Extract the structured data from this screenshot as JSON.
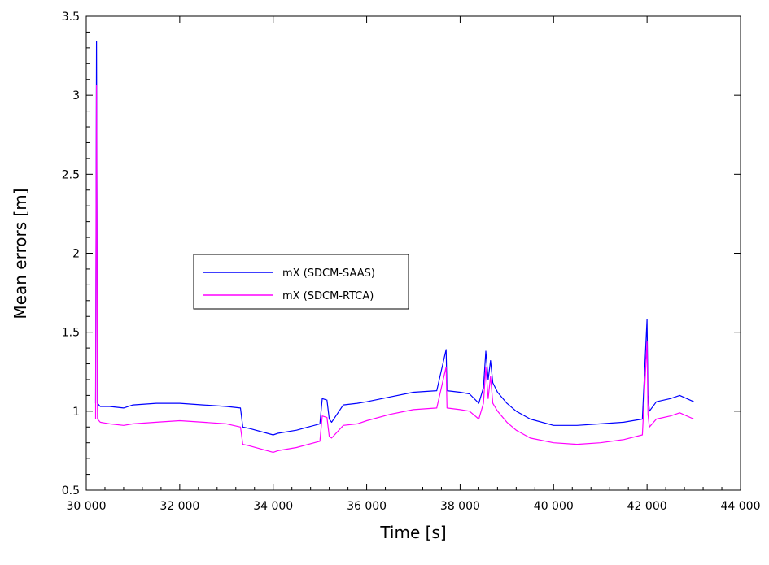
{
  "chart_data": {
    "type": "line",
    "xlabel": "Time [s]",
    "ylabel": "Mean errors [m]",
    "xlim": [
      30000,
      44000
    ],
    "ylim": [
      0.5,
      3.5
    ],
    "xticks": [
      30000,
      32000,
      34000,
      36000,
      38000,
      40000,
      42000,
      44000
    ],
    "xtick_labels": [
      "30 000",
      "32 000",
      "34 000",
      "36 000",
      "38 000",
      "40 000",
      "42 000",
      "44 000"
    ],
    "yticks": [
      0.5,
      1,
      1.5,
      2,
      2.5,
      3,
      3.5
    ],
    "ytick_labels": [
      "0.5",
      "1",
      "1.5",
      "2",
      "2.5",
      "3",
      "3.5"
    ],
    "grid": false,
    "legend_position": "center-left",
    "series": [
      {
        "name": "mX (SDCM-SAAS)",
        "color": "#0000ff",
        "x": [
          30200,
          30220,
          30240,
          30300,
          30500,
          30800,
          31000,
          31500,
          32000,
          32500,
          33000,
          33300,
          33350,
          33500,
          34000,
          34100,
          34500,
          35000,
          35050,
          35150,
          35200,
          35250,
          35500,
          35800,
          36000,
          36500,
          37000,
          37500,
          37700,
          37720,
          38000,
          38200,
          38400,
          38500,
          38550,
          38600,
          38650,
          38700,
          38800,
          39000,
          39200,
          39500,
          40000,
          40500,
          41000,
          41500,
          41900,
          42000,
          42020,
          42050,
          42200,
          42500,
          42700,
          43000
        ],
        "y": [
          1.05,
          3.34,
          1.05,
          1.03,
          1.03,
          1.02,
          1.04,
          1.05,
          1.05,
          1.04,
          1.03,
          1.02,
          0.9,
          0.89,
          0.85,
          0.86,
          0.88,
          0.92,
          1.08,
          1.07,
          0.95,
          0.93,
          1.04,
          1.05,
          1.06,
          1.09,
          1.12,
          1.13,
          1.39,
          1.13,
          1.12,
          1.11,
          1.05,
          1.15,
          1.38,
          1.2,
          1.32,
          1.18,
          1.12,
          1.05,
          1.0,
          0.95,
          0.91,
          0.91,
          0.92,
          0.93,
          0.95,
          1.58,
          1.1,
          1.0,
          1.06,
          1.08,
          1.1,
          1.06
        ]
      },
      {
        "name": "mX (SDCM-RTCA)",
        "color": "#ff00ff",
        "x": [
          30200,
          30220,
          30240,
          30300,
          30500,
          30800,
          31000,
          31500,
          32000,
          32500,
          33000,
          33300,
          33350,
          33500,
          34000,
          34100,
          34500,
          35000,
          35050,
          35150,
          35200,
          35250,
          35500,
          35800,
          36000,
          36500,
          37000,
          37500,
          37700,
          37720,
          38000,
          38200,
          38400,
          38500,
          38550,
          38600,
          38650,
          38700,
          38800,
          39000,
          39200,
          39500,
          40000,
          40500,
          41000,
          41500,
          41900,
          42000,
          42020,
          42050,
          42200,
          42500,
          42700,
          43000
        ],
        "y": [
          0.95,
          3.06,
          0.95,
          0.93,
          0.92,
          0.91,
          0.92,
          0.93,
          0.94,
          0.93,
          0.92,
          0.9,
          0.79,
          0.78,
          0.74,
          0.75,
          0.77,
          0.81,
          0.97,
          0.96,
          0.84,
          0.83,
          0.91,
          0.92,
          0.94,
          0.98,
          1.01,
          1.02,
          1.28,
          1.02,
          1.01,
          1.0,
          0.95,
          1.05,
          1.28,
          1.08,
          1.22,
          1.05,
          1.0,
          0.93,
          0.88,
          0.83,
          0.8,
          0.79,
          0.8,
          0.82,
          0.85,
          1.44,
          0.98,
          0.9,
          0.95,
          0.97,
          0.99,
          0.95
        ]
      }
    ]
  }
}
